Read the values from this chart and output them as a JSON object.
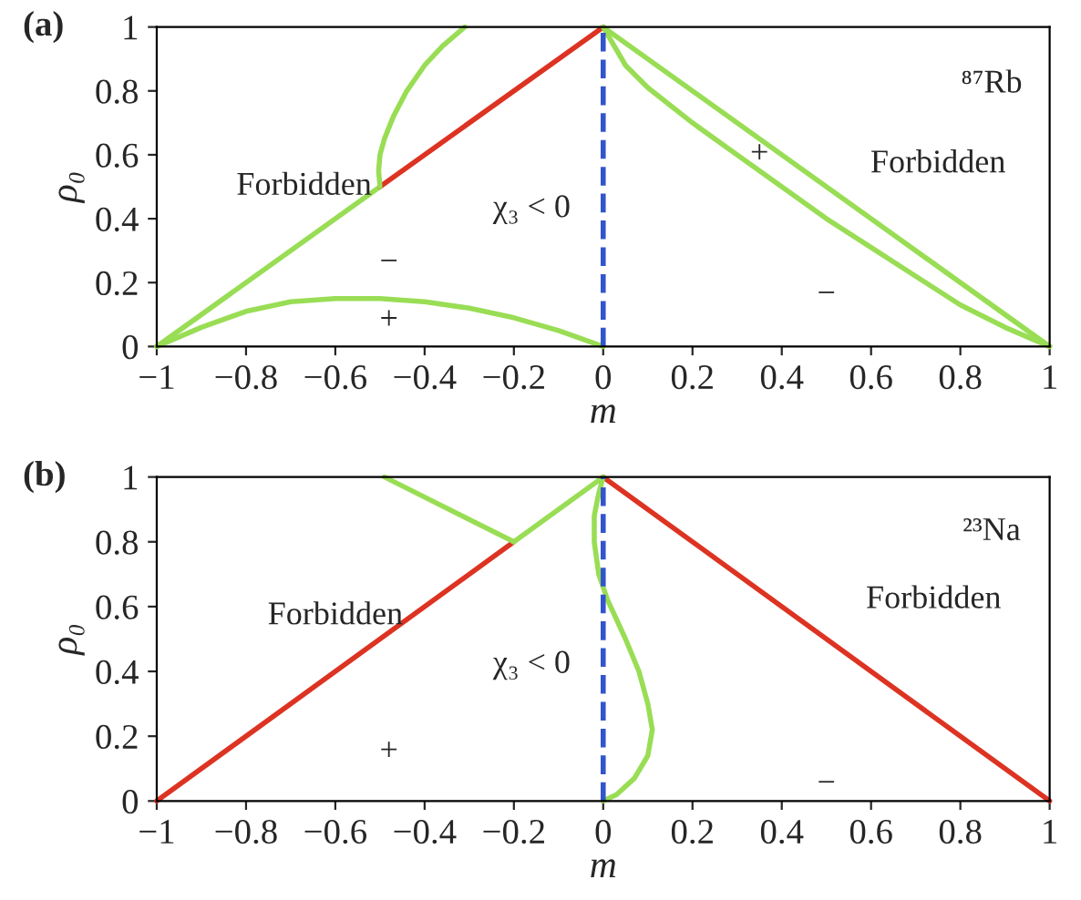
{
  "chart_data": [
    {
      "type": "line",
      "title": "(a)",
      "xlabel": "m",
      "ylabel": "ρ₀",
      "grid": false,
      "legend": false,
      "xlim": [
        -1,
        1
      ],
      "ylim": [
        0,
        1
      ],
      "xticks": [
        {
          "value": -1,
          "label": "−1"
        },
        {
          "value": -0.8,
          "label": "−0.8"
        },
        {
          "value": -0.6,
          "label": "−0.6"
        },
        {
          "value": -0.4,
          "label": "−0.4"
        },
        {
          "value": -0.2,
          "label": "−0.2"
        },
        0,
        0.2,
        0.4,
        0.6,
        0.8,
        1
      ],
      "yticks": [
        0,
        0.2,
        0.4,
        0.6,
        0.8,
        1
      ],
      "series": [
        {
          "color": "#99dd55",
          "line_style": "solid",
          "x": [
            -1,
            -0.5
          ],
          "values": [
            0,
            0.5
          ]
        },
        {
          "color": "#dd3322",
          "line_style": "solid",
          "x": [
            -0.5,
            0
          ],
          "values": [
            0.5,
            1
          ]
        },
        {
          "color": "#99dd55",
          "line_style": "solid",
          "x": [
            -0.5,
            -0.503,
            -0.5,
            -0.49,
            -0.47,
            -0.44,
            -0.4,
            -0.36,
            -0.31
          ],
          "values": [
            0.5,
            0.55,
            0.6,
            0.65,
            0.72,
            0.8,
            0.88,
            0.94,
            1
          ]
        },
        {
          "color": "#99dd55",
          "line_style": "solid",
          "x": [
            -1,
            -0.9,
            -0.8,
            -0.7,
            -0.6,
            -0.5,
            -0.4,
            -0.3,
            -0.2,
            -0.1,
            0
          ],
          "values": [
            0,
            0.06,
            0.11,
            0.14,
            0.15,
            0.15,
            0.14,
            0.12,
            0.09,
            0.05,
            0
          ]
        },
        {
          "color": "#99dd55",
          "line_style": "solid",
          "x": [
            0,
            1
          ],
          "values": [
            1,
            0
          ]
        },
        {
          "color": "#99dd55",
          "line_style": "solid",
          "x": [
            0,
            0.05,
            0.1,
            0.2,
            0.3,
            0.4,
            0.5,
            0.6,
            0.7,
            0.8,
            0.9,
            1
          ],
          "values": [
            1,
            0.88,
            0.81,
            0.7,
            0.6,
            0.5,
            0.4,
            0.31,
            0.22,
            0.13,
            0.06,
            0
          ]
        },
        {
          "color": "#3355cc",
          "line_style": "dashed",
          "x": [
            0,
            0
          ],
          "values": [
            0,
            1
          ]
        }
      ],
      "annotations": [
        "Forbidden",
        "Forbidden",
        "χ₃ < 0",
        "−",
        "+",
        "+",
        "−",
        "⁸⁷Rb"
      ]
    },
    {
      "type": "line",
      "title": "(b)",
      "xlabel": "m",
      "ylabel": "ρ₀",
      "grid": false,
      "legend": false,
      "xlim": [
        -1,
        1
      ],
      "ylim": [
        0,
        1
      ],
      "xticks": [
        {
          "value": -1,
          "label": "−1"
        },
        {
          "value": -0.8,
          "label": "−0.8"
        },
        {
          "value": -0.6,
          "label": "−0.6"
        },
        {
          "value": -0.4,
          "label": "−0.4"
        },
        {
          "value": -0.2,
          "label": "−0.2"
        },
        0,
        0.2,
        0.4,
        0.6,
        0.8,
        1
      ],
      "yticks": [
        0,
        0.2,
        0.4,
        0.6,
        0.8,
        1
      ],
      "series": [
        {
          "color": "#dd3322",
          "line_style": "solid",
          "x": [
            -1,
            -0.2
          ],
          "values": [
            0,
            0.8
          ]
        },
        {
          "color": "#99dd55",
          "line_style": "solid",
          "x": [
            -0.2,
            0
          ],
          "values": [
            0.8,
            1
          ]
        },
        {
          "color": "#99dd55",
          "line_style": "solid",
          "x": [
            -0.2,
            -0.49
          ],
          "values": [
            0.8,
            1
          ]
        },
        {
          "color": "#dd3322",
          "line_style": "solid",
          "x": [
            0,
            1
          ],
          "values": [
            1,
            0
          ]
        },
        {
          "color": "#99dd55",
          "line_style": "solid",
          "x": [
            0,
            -0.01,
            -0.02,
            -0.02,
            -0.01,
            0.01,
            0.05,
            0.08,
            0.1,
            0.11,
            0.1,
            0.07,
            0.03,
            0
          ],
          "values": [
            1,
            0.95,
            0.88,
            0.8,
            0.7,
            0.62,
            0.5,
            0.4,
            0.3,
            0.22,
            0.14,
            0.07,
            0.02,
            0
          ]
        },
        {
          "color": "#3355cc",
          "line_style": "dashed",
          "x": [
            0,
            0
          ],
          "values": [
            0,
            1
          ]
        }
      ],
      "annotations": [
        "Forbidden",
        "Forbidden",
        "χ₃ < 0",
        "+",
        "−",
        "²³Na"
      ]
    }
  ]
}
